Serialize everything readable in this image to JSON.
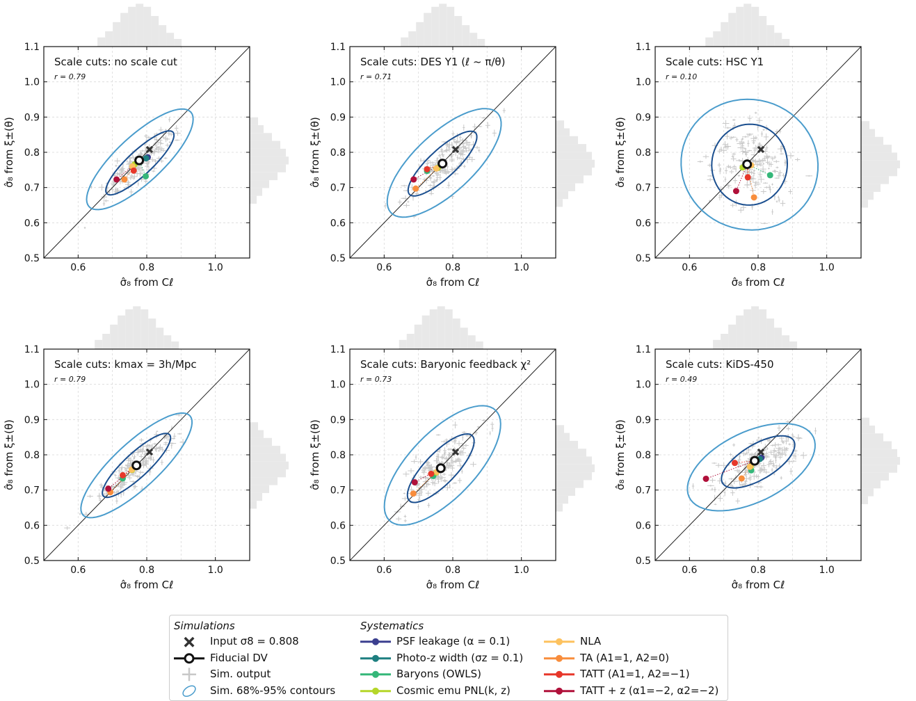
{
  "figure": {
    "panels": [
      {
        "title": "Scale cuts: no scale cut",
        "r_label": "r = 0.79"
      },
      {
        "title": "Scale cuts: DES Y1 (ℓ ~ π/θ)",
        "r_label": "r = 0.71"
      },
      {
        "title": "Scale cuts: HSC Y1",
        "r_label": "r = 0.10"
      },
      {
        "title": "Scale cuts: kmax = 3h/Mpc",
        "r_label": "r = 0.79"
      },
      {
        "title": "Scale cuts: Baryonic feedback χ²",
        "r_label": "r = 0.73"
      },
      {
        "title": "Scale cuts: KiDS-450",
        "r_label": "r = 0.49"
      }
    ],
    "xlabel": "σ̂₈ from Cℓ",
    "ylabel": "σ̂₈ from ξ±(θ)",
    "xticks": [
      "0.6",
      "0.8",
      "1.0"
    ],
    "yticks": [
      "0.5",
      "0.6",
      "0.7",
      "0.8",
      "0.9",
      "1.0",
      "1.1"
    ]
  },
  "legend": {
    "simulations_heading": "Simulations",
    "systematics_heading": "Systematics",
    "simulations": [
      {
        "label": "Input σ8 = 0.808",
        "icon": "cross-icon"
      },
      {
        "label": "Fiducial DV",
        "icon": "ring-icon"
      },
      {
        "label": "Sim. output",
        "icon": "errorbar-icon"
      },
      {
        "label": "Sim. 68%-95% contours",
        "icon": "ellipse-icon"
      }
    ],
    "systematics": [
      {
        "label": "PSF leakage (α = 0.1)",
        "color": "#3b3f8f"
      },
      {
        "label": "Photo-z width (σz = 0.1)",
        "color": "#1e7f80"
      },
      {
        "label": "Baryons (OWLS)",
        "color": "#35b779"
      },
      {
        "label": "Cosmic emu PNL(k, z)",
        "color": "#b5d629"
      },
      {
        "label": "NLA",
        "color": "#fdc25f"
      },
      {
        "label": "TA (A1=1, A2=0)",
        "color": "#f88d3c"
      },
      {
        "label": "TATT (A1=1, A2=−1)",
        "color": "#e7372a"
      },
      {
        "label": "TATT + z (α1=−2, α2=−2)",
        "color": "#b0103a"
      }
    ]
  },
  "colors": {
    "contour_68": "#1b4f8f",
    "contour_95": "#4a9ccc",
    "sim_points": "#c8c8c8",
    "histogram": "#e8e8e8",
    "diagonal": "#222222",
    "input_marker": "#333333"
  },
  "chart_data": [
    {
      "type": "scatter",
      "title": "Scale cuts: no scale cut",
      "annotation": "r = 0.79",
      "xlabel": "σ̂₈ from Cℓ",
      "ylabel": "σ̂₈ from ξ±(θ)",
      "xlim": [
        0.5,
        1.1
      ],
      "ylim": [
        0.5,
        1.1
      ],
      "grid": true,
      "input": [
        0.808,
        0.808
      ],
      "fiducial": [
        0.778,
        0.777
      ],
      "systematics": [
        {
          "name": "PSF leakage (α = 0.1)",
          "x": 0.803,
          "y": 0.786
        },
        {
          "name": "Photo-z width (σz = 0.1)",
          "x": 0.798,
          "y": 0.783
        },
        {
          "name": "Baryons (OWLS)",
          "x": 0.797,
          "y": 0.732
        },
        {
          "name": "Cosmic emu PNL(k, z)",
          "x": 0.765,
          "y": 0.766
        },
        {
          "name": "NLA",
          "x": 0.758,
          "y": 0.76
        },
        {
          "name": "TA (A1=1, A2=0)",
          "x": 0.735,
          "y": 0.723
        },
        {
          "name": "TATT (A1=1, A2=−1)",
          "x": 0.762,
          "y": 0.748
        },
        {
          "name": "TATT + z (α1=−2, α2=−2)",
          "x": 0.712,
          "y": 0.723
        }
      ],
      "contour_68": {
        "cx": 0.78,
        "cy": 0.77,
        "a": 0.13,
        "b": 0.035,
        "angle_deg": 42
      },
      "contour_95": {
        "cx": 0.78,
        "cy": 0.78,
        "a": 0.2,
        "b": 0.067,
        "angle_deg": 42
      }
    },
    {
      "type": "scatter",
      "title": "Scale cuts: DES Y1 (ℓ ~ π/θ)",
      "annotation": "r = 0.71",
      "xlabel": "σ̂₈ from Cℓ",
      "ylabel": "σ̂₈ from ξ±(θ)",
      "xlim": [
        0.5,
        1.1
      ],
      "ylim": [
        0.5,
        1.1
      ],
      "grid": true,
      "input": [
        0.808,
        0.808
      ],
      "fiducial": [
        0.77,
        0.768
      ],
      "systematics": [
        {
          "name": "PSF leakage (α = 0.1)",
          "x": 0.773,
          "y": 0.772
        },
        {
          "name": "Photo-z width (σz = 0.1)",
          "x": 0.768,
          "y": 0.768
        },
        {
          "name": "Baryons (OWLS)",
          "x": 0.725,
          "y": 0.747
        },
        {
          "name": "Cosmic emu PNL(k, z)",
          "x": 0.757,
          "y": 0.756
        },
        {
          "name": "NLA",
          "x": 0.752,
          "y": 0.754
        },
        {
          "name": "TA (A1=1, A2=0)",
          "x": 0.692,
          "y": 0.697
        },
        {
          "name": "TATT (A1=1, A2=−1)",
          "x": 0.725,
          "y": 0.752
        },
        {
          "name": "TATT + z (α1=−2, α2=−2)",
          "x": 0.686,
          "y": 0.723
        }
      ],
      "contour_68": {
        "cx": 0.77,
        "cy": 0.768,
        "a": 0.13,
        "b": 0.04,
        "angle_deg": 42
      },
      "contour_95": {
        "cx": 0.775,
        "cy": 0.77,
        "a": 0.21,
        "b": 0.085,
        "angle_deg": 42
      }
    },
    {
      "type": "scatter",
      "title": "Scale cuts: HSC Y1",
      "annotation": "r = 0.10",
      "xlabel": "σ̂₈ from Cℓ",
      "ylabel": "σ̂₈ from ξ±(θ)",
      "xlim": [
        0.5,
        1.1
      ],
      "ylim": [
        0.5,
        1.1
      ],
      "grid": true,
      "input": [
        0.808,
        0.808
      ],
      "fiducial": [
        0.768,
        0.766
      ],
      "systematics": [
        {
          "name": "PSF leakage (α = 0.1)",
          "x": 0.77,
          "y": 0.768
        },
        {
          "name": "Photo-z width (σz = 0.1)",
          "x": 0.768,
          "y": 0.765
        },
        {
          "name": "Baryons (OWLS)",
          "x": 0.835,
          "y": 0.735
        },
        {
          "name": "Cosmic emu PNL(k, z)",
          "x": 0.755,
          "y": 0.757
        },
        {
          "name": "NLA",
          "x": 0.78,
          "y": 0.763
        },
        {
          "name": "TA (A1=1, A2=0)",
          "x": 0.788,
          "y": 0.672
        },
        {
          "name": "TATT (A1=1, A2=−1)",
          "x": 0.77,
          "y": 0.729
        },
        {
          "name": "TATT + z (α1=−2, α2=−2)",
          "x": 0.736,
          "y": 0.69
        }
      ],
      "contour_68": {
        "cx": 0.775,
        "cy": 0.765,
        "a": 0.115,
        "b": 0.11,
        "angle_deg": 80
      },
      "contour_95": {
        "cx": 0.775,
        "cy": 0.765,
        "a": 0.185,
        "b": 0.2,
        "angle_deg": 80
      }
    },
    {
      "type": "scatter",
      "title": "Scale cuts: kmax = 3h/Mpc",
      "annotation": "r = 0.79",
      "xlabel": "σ̂₈ from Cℓ",
      "ylabel": "σ̂₈ from ξ±(θ)",
      "xlim": [
        0.5,
        1.1
      ],
      "ylim": [
        0.5,
        1.1
      ],
      "grid": true,
      "input": [
        0.808,
        0.808
      ],
      "fiducial": [
        0.77,
        0.77
      ],
      "systematics": [
        {
          "name": "PSF leakage (α = 0.1)",
          "x": 0.773,
          "y": 0.773
        },
        {
          "name": "Photo-z width (σz = 0.1)",
          "x": 0.769,
          "y": 0.768
        },
        {
          "name": "Baryons (OWLS)",
          "x": 0.73,
          "y": 0.733
        },
        {
          "name": "Cosmic emu PNL(k, z)",
          "x": 0.757,
          "y": 0.757
        },
        {
          "name": "NLA",
          "x": 0.756,
          "y": 0.758
        },
        {
          "name": "TA (A1=1, A2=0)",
          "x": 0.694,
          "y": 0.694
        },
        {
          "name": "TATT (A1=1, A2=−1)",
          "x": 0.73,
          "y": 0.742
        },
        {
          "name": "TATT + z (α1=−2, α2=−2)",
          "x": 0.688,
          "y": 0.704
        }
      ],
      "contour_68": {
        "cx": 0.77,
        "cy": 0.77,
        "a": 0.13,
        "b": 0.035,
        "angle_deg": 42
      },
      "contour_95": {
        "cx": 0.77,
        "cy": 0.77,
        "a": 0.21,
        "b": 0.065,
        "angle_deg": 42
      }
    },
    {
      "type": "scatter",
      "title": "Scale cuts: Baryonic feedback χ²",
      "annotation": "r = 0.73",
      "xlabel": "σ̂₈ from Cℓ",
      "ylabel": "σ̂₈ from ξ±(θ)",
      "xlim": [
        0.5,
        1.1
      ],
      "ylim": [
        0.5,
        1.1
      ],
      "grid": true,
      "input": [
        0.808,
        0.808
      ],
      "fiducial": [
        0.765,
        0.762
      ],
      "systematics": [
        {
          "name": "PSF leakage (α = 0.1)",
          "x": 0.768,
          "y": 0.765
        },
        {
          "name": "Photo-z width (σz = 0.1)",
          "x": 0.765,
          "y": 0.762
        },
        {
          "name": "Baryons (OWLS)",
          "x": 0.743,
          "y": 0.74
        },
        {
          "name": "Cosmic emu PNL(k, z)",
          "x": 0.752,
          "y": 0.75
        },
        {
          "name": "NLA",
          "x": 0.754,
          "y": 0.752
        },
        {
          "name": "TA (A1=1, A2=0)",
          "x": 0.685,
          "y": 0.69
        },
        {
          "name": "TATT (A1=1, A2=−1)",
          "x": 0.737,
          "y": 0.746
        },
        {
          "name": "TATT + z (α1=−2, α2=−2)",
          "x": 0.689,
          "y": 0.722
        }
      ],
      "contour_68": {
        "cx": 0.765,
        "cy": 0.762,
        "a": 0.13,
        "b": 0.045,
        "angle_deg": 45
      },
      "contour_95": {
        "cx": 0.77,
        "cy": 0.77,
        "a": 0.22,
        "b": 0.095,
        "angle_deg": 45
      }
    },
    {
      "type": "scatter",
      "title": "Scale cuts: KiDS-450",
      "annotation": "r = 0.49",
      "xlabel": "σ̂₈ from Cℓ",
      "ylabel": "σ̂₈ from ξ±(θ)",
      "xlim": [
        0.5,
        1.1
      ],
      "ylim": [
        0.5,
        1.1
      ],
      "grid": true,
      "input": [
        0.808,
        0.808
      ],
      "fiducial": [
        0.79,
        0.783
      ],
      "systematics": [
        {
          "name": "PSF leakage (α = 0.1)",
          "x": 0.81,
          "y": 0.792
        },
        {
          "name": "Photo-z width (σz = 0.1)",
          "x": 0.805,
          "y": 0.788
        },
        {
          "name": "Baryons (OWLS)",
          "x": 0.78,
          "y": 0.756
        },
        {
          "name": "Cosmic emu PNL(k, z)",
          "x": 0.778,
          "y": 0.767
        },
        {
          "name": "NLA",
          "x": 0.776,
          "y": 0.766
        },
        {
          "name": "TA (A1=1, A2=0)",
          "x": 0.752,
          "y": 0.733
        },
        {
          "name": "TATT (A1=1, A2=−1)",
          "x": 0.732,
          "y": 0.777
        },
        {
          "name": "TATT + z (α1=−2, α2=−2)",
          "x": 0.648,
          "y": 0.732
        }
      ],
      "contour_68": {
        "cx": 0.8,
        "cy": 0.78,
        "a": 0.12,
        "b": 0.05,
        "angle_deg": 30
      },
      "contour_95": {
        "cx": 0.78,
        "cy": 0.765,
        "a": 0.2,
        "b": 0.1,
        "angle_deg": 25
      }
    }
  ]
}
